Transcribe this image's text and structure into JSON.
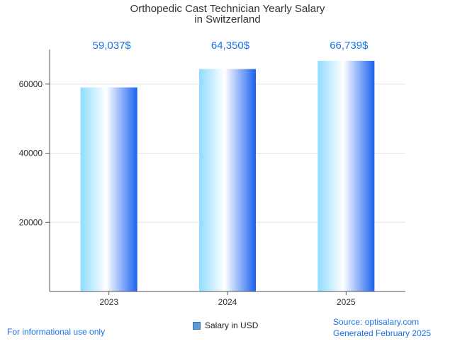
{
  "chart_data": {
    "type": "bar",
    "title_lines": [
      "Orthopedic Cast Technician Yearly Salary",
      "in Switzerland"
    ],
    "categories": [
      "2023",
      "2024",
      "2025"
    ],
    "series": [
      {
        "name": "Salary in USD",
        "values": [
          59037,
          64350,
          66739
        ]
      }
    ],
    "value_labels": [
      "59,037$",
      "64,350$",
      "66,739$"
    ],
    "yticks": [
      20000,
      40000,
      60000
    ],
    "ylim": [
      0,
      70000
    ],
    "grid": true,
    "legend_position": "bottom"
  },
  "footer": {
    "disclaimer": "For informational use only",
    "source": "Source: optisalary.com",
    "generated": "Generated February 2025"
  },
  "colors": {
    "bar_light": "#ffffff",
    "bar_mid": "#7fd3ff",
    "bar_dark": "#1a6cf0",
    "label": "#1a73e8"
  }
}
